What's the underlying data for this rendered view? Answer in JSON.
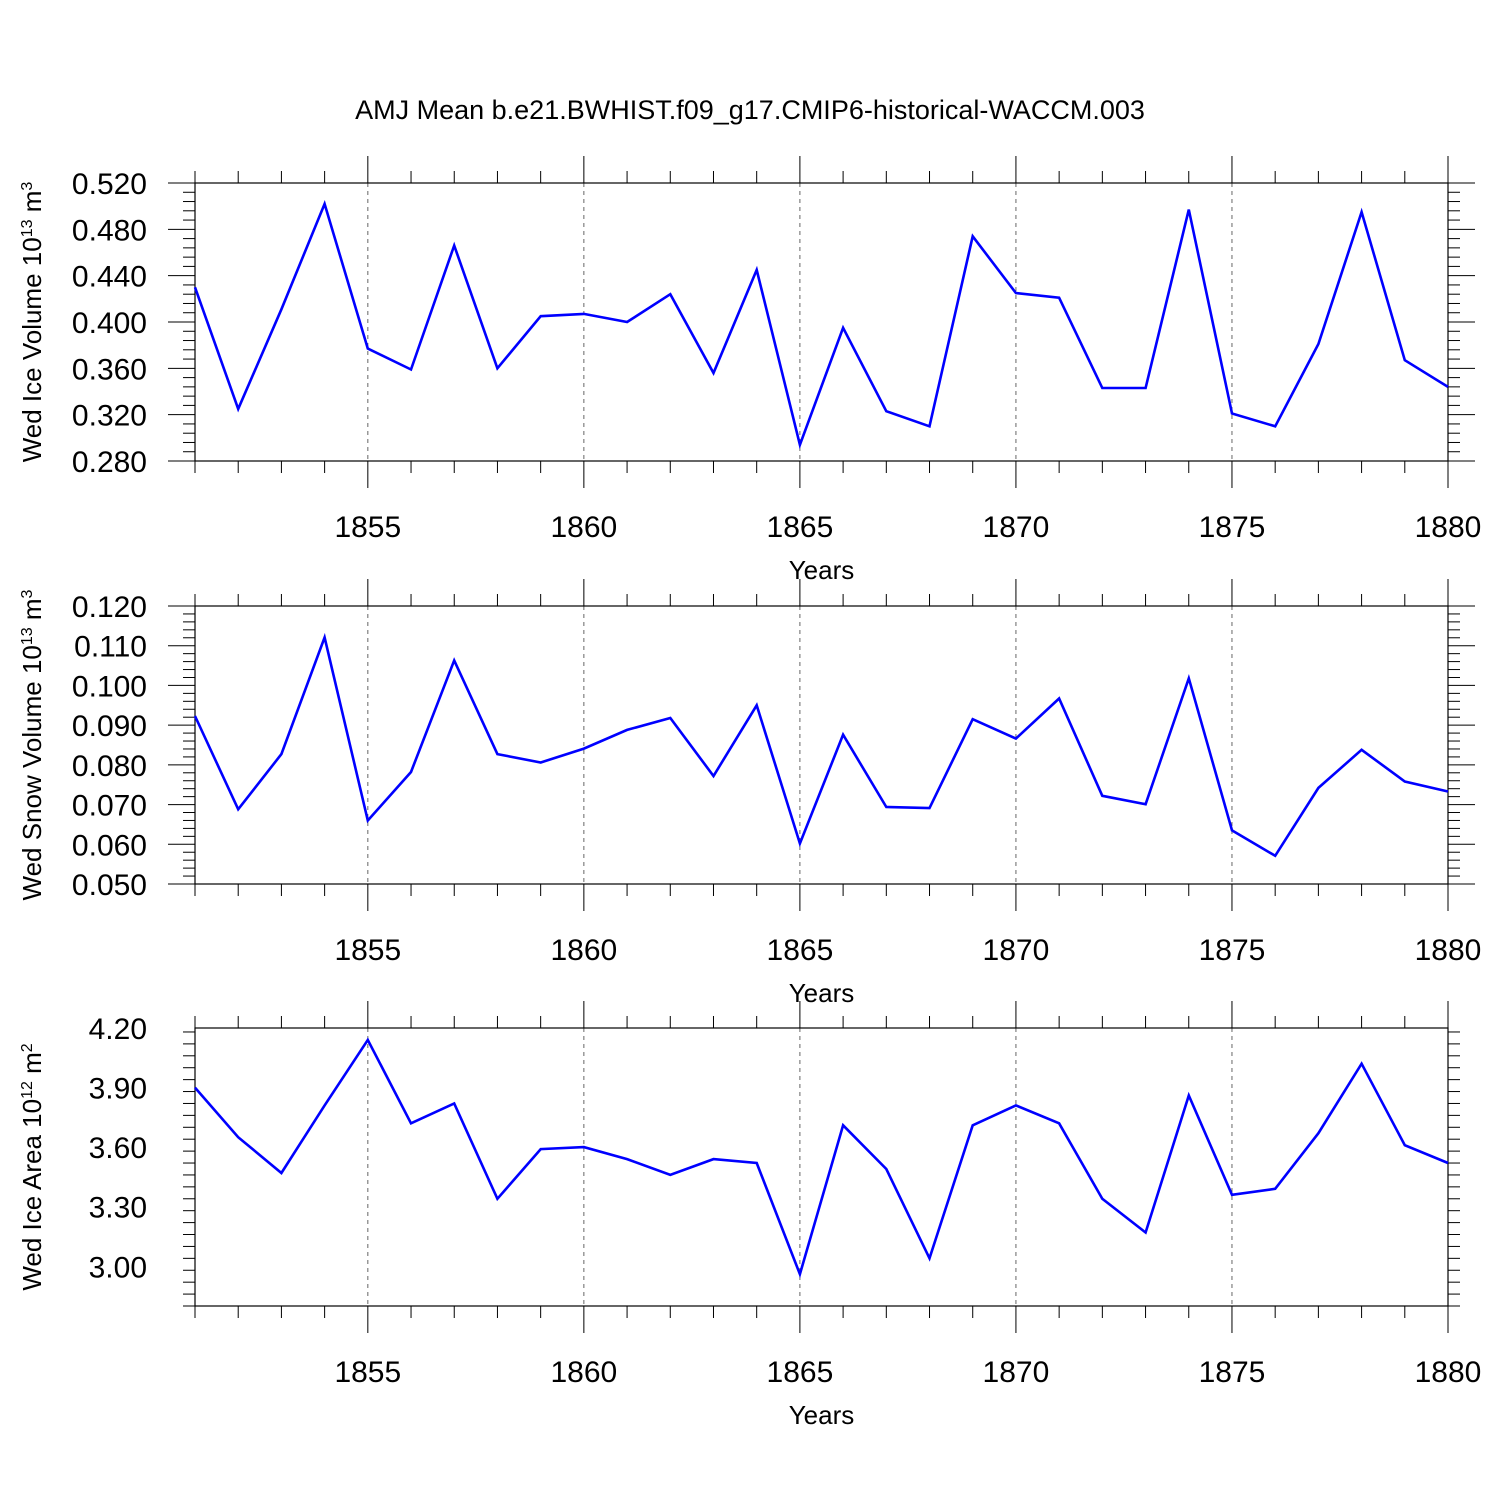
{
  "title": "AMJ Mean b.e21.BWHIST.f09_g17.CMIP6-historical-WACCM.003",
  "colors": {
    "line": "#0000ff",
    "axis": "#000000",
    "grid": "#666666"
  },
  "chart_data": [
    {
      "type": "line",
      "ylabel": {
        "text": "Wed Ice Volume 10",
        "exponent": "13",
        "unit": " m",
        "unit_exponent": "3"
      },
      "xlabel": "Years",
      "xlim": [
        1851,
        1880
      ],
      "ylim": [
        0.28,
        0.52
      ],
      "yticks": [
        "0.520",
        "0.480",
        "0.440",
        "0.400",
        "0.360",
        "0.320",
        "0.280"
      ],
      "ytick_values": [
        0.52,
        0.48,
        0.44,
        0.4,
        0.36,
        0.32,
        0.28
      ],
      "xticks": [
        "1855",
        "1860",
        "1865",
        "1870",
        "1875",
        "1880"
      ],
      "xtick_values": [
        1855,
        1860,
        1865,
        1870,
        1875,
        1880
      ],
      "grid": "vertical dashed at labeled years",
      "series": [
        {
          "name": "Wed Ice Volume",
          "x": [
            1851,
            1852,
            1853,
            1854,
            1855,
            1856,
            1857,
            1858,
            1859,
            1860,
            1861,
            1862,
            1863,
            1864,
            1865,
            1866,
            1867,
            1868,
            1869,
            1870,
            1871,
            1872,
            1873,
            1874,
            1875,
            1876,
            1877,
            1878,
            1879,
            1880
          ],
          "values": [
            0.43,
            0.325,
            0.411,
            0.502,
            0.377,
            0.359,
            0.466,
            0.36,
            0.405,
            0.407,
            0.4,
            0.424,
            0.356,
            0.445,
            0.294,
            0.395,
            0.323,
            0.31,
            0.474,
            0.425,
            0.421,
            0.343,
            0.343,
            0.497,
            0.321,
            0.31,
            0.381,
            0.495,
            0.367,
            0.344
          ]
        }
      ]
    },
    {
      "type": "line",
      "ylabel": {
        "text": "Wed Snow Volume 10",
        "exponent": "13",
        "unit": " m",
        "unit_exponent": "3"
      },
      "xlabel": "Years",
      "xlim": [
        1851,
        1880
      ],
      "ylim": [
        0.05,
        0.12
      ],
      "yticks": [
        "0.120",
        "0.110",
        "0.100",
        "0.090",
        "0.080",
        "0.070",
        "0.060",
        "0.050"
      ],
      "ytick_values": [
        0.12,
        0.11,
        0.1,
        0.09,
        0.08,
        0.07,
        0.06,
        0.05
      ],
      "xticks": [
        "1855",
        "1860",
        "1865",
        "1870",
        "1875",
        "1880"
      ],
      "xtick_values": [
        1855,
        1860,
        1865,
        1870,
        1875,
        1880
      ],
      "grid": "vertical dashed at labeled years",
      "series": [
        {
          "name": "Wed Snow Volume",
          "x": [
            1851,
            1852,
            1853,
            1854,
            1855,
            1856,
            1857,
            1858,
            1859,
            1860,
            1861,
            1862,
            1863,
            1864,
            1865,
            1866,
            1867,
            1868,
            1869,
            1870,
            1871,
            1872,
            1873,
            1874,
            1875,
            1876,
            1877,
            1878,
            1879,
            1880
          ],
          "values": [
            0.0923,
            0.0688,
            0.0827,
            0.1121,
            0.066,
            0.0782,
            0.1063,
            0.0827,
            0.0806,
            0.0841,
            0.0888,
            0.0918,
            0.0772,
            0.095,
            0.0602,
            0.0876,
            0.0694,
            0.0691,
            0.0915,
            0.0866,
            0.0967,
            0.0722,
            0.0701,
            0.1018,
            0.0635,
            0.0571,
            0.0742,
            0.0838,
            0.0758,
            0.0733
          ]
        }
      ]
    },
    {
      "type": "line",
      "ylabel": {
        "text": "Wed Ice Area 10",
        "exponent": "12",
        "unit": " m",
        "unit_exponent": "2"
      },
      "xlabel": "Years",
      "xlim": [
        1851,
        1880
      ],
      "ylim": [
        2.8,
        4.2
      ],
      "yticks": [
        "4.20",
        "3.90",
        "3.60",
        "3.30",
        "3.00"
      ],
      "ytick_values": [
        4.2,
        3.9,
        3.6,
        3.3,
        3.0
      ],
      "xticks": [
        "1855",
        "1860",
        "1865",
        "1870",
        "1875",
        "1880"
      ],
      "xtick_values": [
        1855,
        1860,
        1865,
        1870,
        1875,
        1880
      ],
      "grid": "vertical dashed at labeled years",
      "series": [
        {
          "name": "Wed Ice Area",
          "x": [
            1851,
            1852,
            1853,
            1854,
            1855,
            1856,
            1857,
            1858,
            1859,
            1860,
            1861,
            1862,
            1863,
            1864,
            1865,
            1866,
            1867,
            1868,
            1869,
            1870,
            1871,
            1872,
            1873,
            1874,
            1875,
            1876,
            1877,
            1878,
            1879,
            1880
          ],
          "values": [
            3.9,
            3.65,
            3.47,
            3.81,
            4.14,
            3.72,
            3.82,
            3.34,
            3.59,
            3.6,
            3.54,
            3.46,
            3.54,
            3.52,
            2.96,
            3.71,
            3.49,
            3.04,
            3.71,
            3.81,
            3.72,
            3.34,
            3.17,
            3.86,
            3.36,
            3.39,
            3.67,
            4.02,
            3.61,
            3.52
          ]
        }
      ]
    }
  ]
}
